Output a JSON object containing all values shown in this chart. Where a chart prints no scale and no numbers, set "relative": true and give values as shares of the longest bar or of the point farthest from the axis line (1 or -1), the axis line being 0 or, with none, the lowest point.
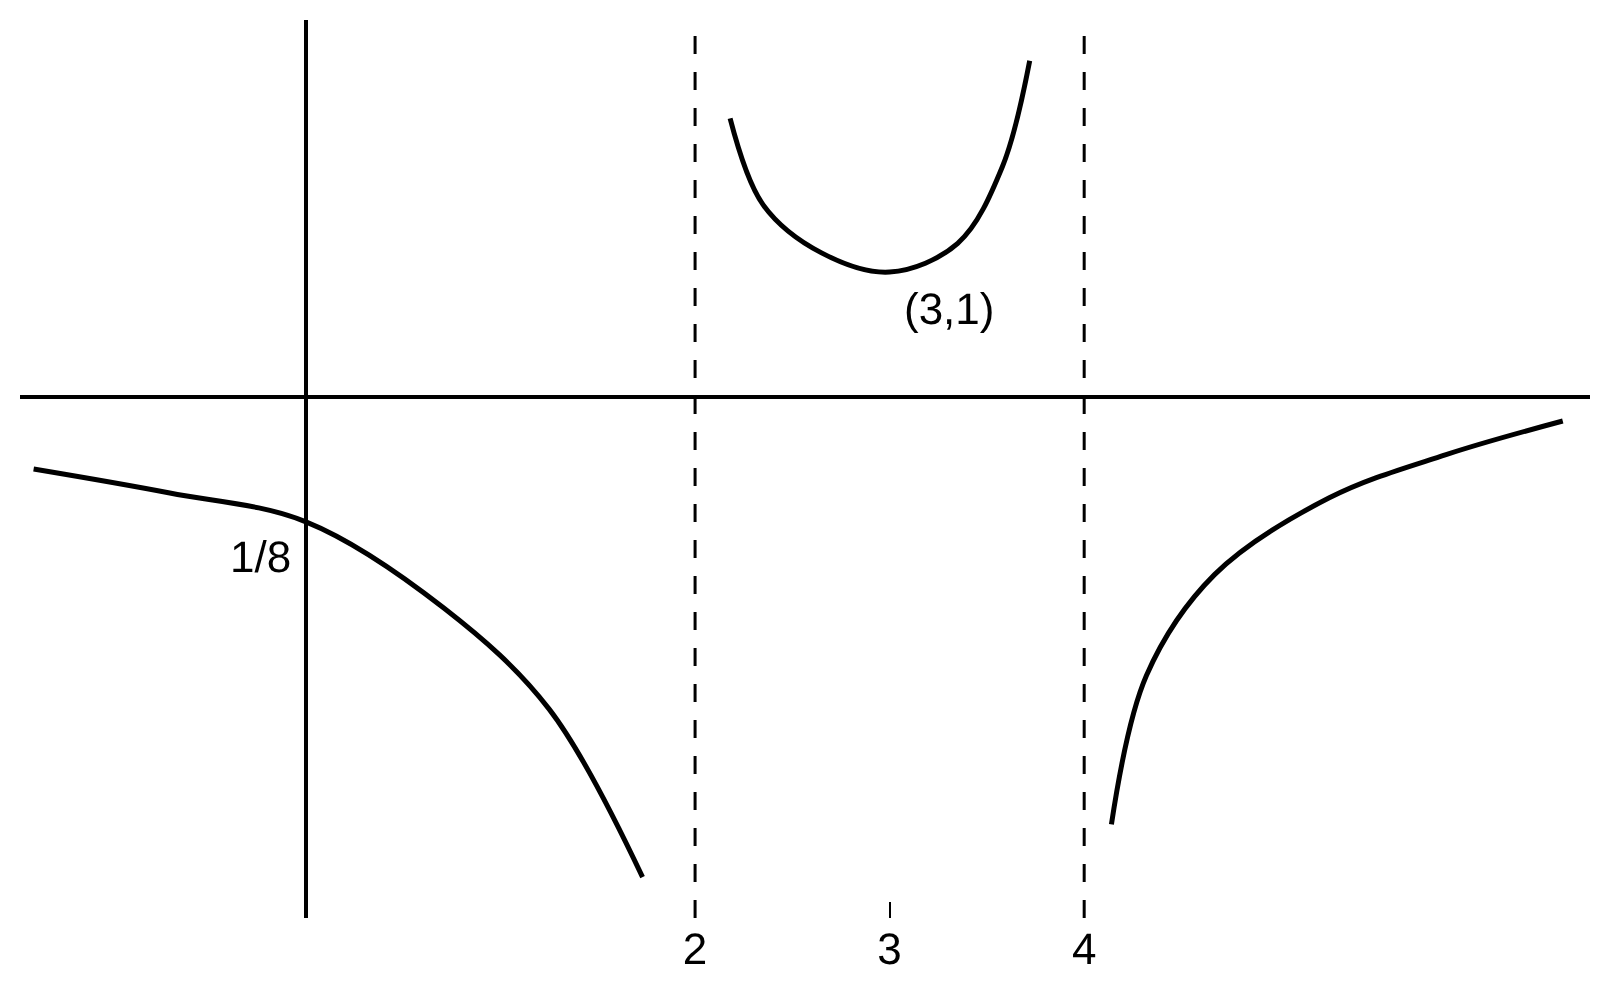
{
  "chart_data": {
    "type": "line",
    "relative": true,
    "x": [
      -1.4,
      -0.7,
      0,
      0.71,
      1.25,
      1.73,
      null,
      2.18,
      2.35,
      2.65,
      3.0,
      3.35,
      3.58,
      3.72,
      null,
      4.14,
      4.32,
      4.67,
      5.26,
      5.86,
      6.46
    ],
    "series": [
      {
        "color": "#000000",
        "values": [
          -0.15,
          -0.2,
          -0.26,
          -0.44,
          -0.65,
          -1.0,
          null,
          0.58,
          0.4,
          0.3,
          0.26,
          0.32,
          0.48,
          0.7,
          null,
          -0.89,
          -0.58,
          -0.37,
          -0.21,
          -0.12,
          -0.05
        ]
      }
    ],
    "xlim": [
      -1.47,
      6.6
    ],
    "xticks": [
      2,
      3,
      4
    ],
    "marker": "none",
    "line_style": "solid",
    "ref_lines": [
      {
        "axis": "x",
        "value": 2,
        "line_style": "dashed",
        "color": "#000000"
      },
      {
        "axis": "x",
        "value": 4,
        "line_style": "dashed",
        "color": "#000000"
      }
    ],
    "annotations": [
      {
        "text": "(3,1)",
        "x": 3,
        "y": 0.26
      },
      {
        "text": "1/8",
        "x": 0,
        "y": -0.26
      }
    ]
  }
}
